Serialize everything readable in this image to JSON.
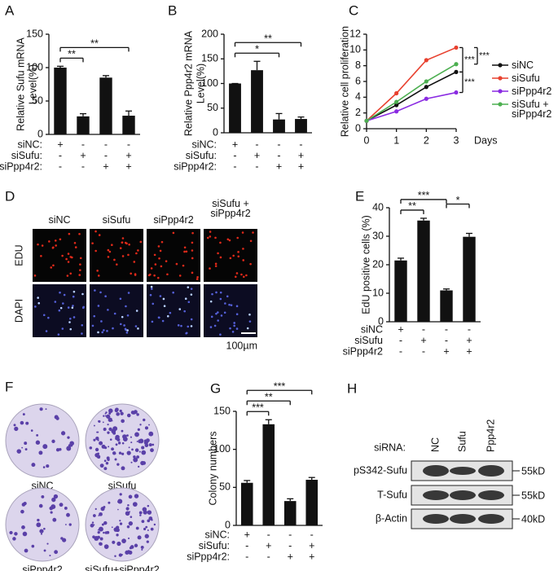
{
  "panel_labels": [
    "A",
    "B",
    "C",
    "D",
    "E",
    "F",
    "G",
    "H"
  ],
  "chart_data": [
    {
      "type": "bar",
      "ylabel": [
        "Relative Sufu mRNA",
        "Level(%)"
      ],
      "color": "#111111",
      "values": [
        100,
        27,
        85,
        28
      ],
      "errors": [
        2,
        4,
        3,
        7
      ],
      "ylim": [
        0,
        150
      ],
      "yticks": [
        0,
        50,
        100,
        150
      ],
      "conditions": [
        {
          "name": "siNC:",
          "marks": [
            "+",
            "-",
            "-",
            "-"
          ]
        },
        {
          "name": "siSufu:",
          "marks": [
            "-",
            "+",
            "-",
            "+"
          ]
        },
        {
          "name": "siPpp4r2:",
          "marks": [
            "-",
            "-",
            "+",
            "+"
          ]
        }
      ],
      "annotations": [
        {
          "text": "**",
          "from": 0,
          "to": 1
        },
        {
          "text": "**",
          "from": 0,
          "to": 3
        }
      ]
    },
    {
      "type": "bar",
      "ylabel": [
        "Relative Ppp4r2 mRNA",
        "Level(%)"
      ],
      "color": "#111111",
      "values": [
        100,
        127,
        27,
        28
      ],
      "errors": [
        0,
        18,
        12,
        4
      ],
      "ylim": [
        0,
        200
      ],
      "yticks": [
        0,
        50,
        100,
        150,
        200
      ],
      "conditions": [
        {
          "name": "siNC:",
          "marks": [
            "+",
            "-",
            "-",
            "-"
          ]
        },
        {
          "name": "siSufu:",
          "marks": [
            "-",
            "+",
            "-",
            "+"
          ]
        },
        {
          "name": "siPpp4r2:",
          "marks": [
            "-",
            "-",
            "+",
            "+"
          ]
        }
      ],
      "annotations": [
        {
          "text": "*",
          "from": 0,
          "to": 2
        },
        {
          "text": "**",
          "from": 0,
          "to": 3
        }
      ]
    },
    {
      "type": "line",
      "ylabel": [
        "Relative cell proliferation"
      ],
      "xlabel": "Days",
      "x": [
        0,
        1,
        2,
        3
      ],
      "xlim": [
        0,
        3
      ],
      "xticks": [
        0,
        1,
        2,
        3
      ],
      "ylim": [
        0,
        12
      ],
      "yticks": [
        0,
        2,
        4,
        6,
        8,
        10,
        12
      ],
      "series": [
        {
          "name": "siNC",
          "color": "#111111",
          "values": [
            1,
            3.0,
            5.3,
            7.2
          ]
        },
        {
          "name": "siSufu",
          "color": "#e8412f",
          "values": [
            1,
            4.5,
            8.7,
            10.3
          ]
        },
        {
          "name": "siPpp4r2",
          "color": "#8a2be2",
          "values": [
            1,
            2.2,
            3.8,
            4.6
          ]
        },
        {
          "name": "siSufu + siPpp4r2",
          "color": "#4caf50",
          "values": [
            1,
            3.4,
            6.0,
            8.2
          ]
        }
      ],
      "annotations": [
        {
          "text": "***",
          "from": 1,
          "to": 0
        },
        {
          "text": "***",
          "from": 1,
          "to": 3
        },
        {
          "text": "***",
          "from": 0,
          "to": 2
        }
      ]
    },
    {
      "type": "bar",
      "ylabel": [
        "EdU positive cells (%)"
      ],
      "color": "#111111",
      "values": [
        21.5,
        35.5,
        11,
        29.8
      ],
      "errors": [
        0.8,
        0.8,
        0.5,
        1.2
      ],
      "ylim": [
        0,
        40
      ],
      "yticks": [
        0,
        10,
        20,
        30,
        40
      ],
      "conditions": [
        {
          "name": "siNC",
          "marks": [
            "+",
            "-",
            "-",
            "-"
          ]
        },
        {
          "name": "siSufu",
          "marks": [
            "-",
            "+",
            "-",
            "+"
          ]
        },
        {
          "name": "siPpp4r2",
          "marks": [
            "-",
            "-",
            "+",
            "+"
          ]
        }
      ],
      "annotations": [
        {
          "text": "**",
          "from": 0,
          "to": 1
        },
        {
          "text": "***",
          "from": 0,
          "to": 2
        },
        {
          "text": "*",
          "from": 2,
          "to": 3
        }
      ]
    },
    {
      "type": "bar",
      "ylabel": [
        "Colony numbers"
      ],
      "color": "#111111",
      "values": [
        56,
        133,
        32,
        60
      ],
      "errors": [
        3,
        6,
        3,
        3
      ],
      "ylim": [
        0,
        150
      ],
      "yticks": [
        0,
        50,
        100,
        150
      ],
      "conditions": [
        {
          "name": "siNC:",
          "marks": [
            "+",
            "-",
            "-",
            "-"
          ]
        },
        {
          "name": "siSufu:",
          "marks": [
            "-",
            "+",
            "-",
            "+"
          ]
        },
        {
          "name": "siPpp4r2:",
          "marks": [
            "-",
            "-",
            "+",
            "+"
          ]
        }
      ],
      "annotations": [
        {
          "text": "***",
          "from": 0,
          "to": 1
        },
        {
          "text": "**",
          "from": 0,
          "to": 2
        },
        {
          "text": "***",
          "from": 0,
          "to": 3
        }
      ]
    }
  ],
  "microscopy": {
    "columns": [
      "siNC",
      "siSufu",
      "siPpp4r2",
      "siSufu + siPpp4r2"
    ],
    "rows": [
      "EDU",
      "DAPI"
    ],
    "scale_bar": "100µm"
  },
  "colony": {
    "plates": [
      "siNC",
      "siSufu",
      "siPpp4r2",
      "siSufu+siPpp4r2"
    ]
  },
  "western": {
    "header": "siRNA:",
    "lanes": [
      "NC",
      "Sufu",
      "Ppp4r2"
    ],
    "blots": [
      "pS342-Sufu",
      "T-Sufu",
      "β-Actin"
    ],
    "markers": [
      "55kD",
      "55kD",
      "40kD"
    ]
  }
}
